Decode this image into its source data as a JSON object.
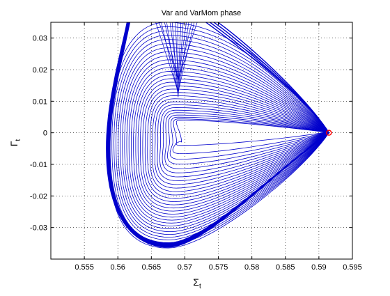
{
  "chart_data": {
    "type": "line",
    "title": "Var and VarMom phase",
    "xlabel_base": "Σ",
    "xlabel_sub": "t",
    "ylabel_base": "Γ",
    "ylabel_sub": "t",
    "xlim": [
      0.55,
      0.595
    ],
    "ylim": [
      -0.04,
      0.035
    ],
    "xticks": [
      "0.555",
      "0.56",
      "0.565",
      "0.57",
      "0.575",
      "0.58",
      "0.585",
      "0.59",
      "0.595"
    ],
    "yticks": [
      "0.03",
      "0.02",
      "0.01",
      "0",
      "-0.01",
      "-0.02",
      "-0.03"
    ],
    "grid": "dotted",
    "line_color": "#0000cc",
    "marker_color": "#ff0000",
    "trajectory": {
      "series_count": 30,
      "fixed_point": [
        0.5915,
        0
      ],
      "tip_x": 0.5915,
      "center_x": 0.5695,
      "center_y": -0.003,
      "left_extent_range": [
        0.5695,
        0.5585
      ],
      "bottom_extent_range": [
        -0.004,
        -0.0365
      ],
      "top_crossing_range": [
        0.004,
        0.035
      ],
      "cusp": [
        0.5685,
        0.033
      ],
      "inner_fan_low_y": 0.011
    }
  }
}
